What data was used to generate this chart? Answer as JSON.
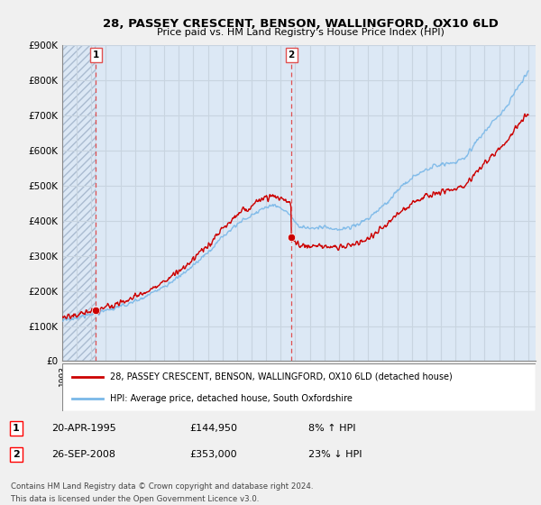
{
  "title": "28, PASSEY CRESCENT, BENSON, WALLINGFORD, OX10 6LD",
  "subtitle": "Price paid vs. HM Land Registry's House Price Index (HPI)",
  "ylim": [
    0,
    900000
  ],
  "yticks": [
    0,
    100000,
    200000,
    300000,
    400000,
    500000,
    600000,
    700000,
    800000,
    900000
  ],
  "ytick_labels": [
    "£0",
    "£100K",
    "£200K",
    "£300K",
    "£400K",
    "£500K",
    "£600K",
    "£700K",
    "£800K",
    "£900K"
  ],
  "xlim_start": 1993.0,
  "xlim_end": 2025.5,
  "background_color": "#f0f0f0",
  "plot_bg_color": "#dce8f5",
  "hatch_bg_color": "#c8d8e8",
  "grid_color": "#c8d4e0",
  "transaction1_x": 1995.305,
  "transaction1_y": 144950,
  "transaction2_x": 2008.735,
  "transaction2_y": 353000,
  "legend_line1": "28, PASSEY CRESCENT, BENSON, WALLINGFORD, OX10 6LD (detached house)",
  "legend_line2": "HPI: Average price, detached house, South Oxfordshire",
  "footer_line1": "Contains HM Land Registry data © Crown copyright and database right 2024.",
  "footer_line2": "This data is licensed under the Open Government Licence v3.0.",
  "table_row1_num": "1",
  "table_row1_date": "20-APR-1995",
  "table_row1_price": "£144,950",
  "table_row1_hpi": "8% ↑ HPI",
  "table_row2_num": "2",
  "table_row2_date": "26-SEP-2008",
  "table_row2_price": "£353,000",
  "table_row2_hpi": "23% ↓ HPI",
  "hpi_color": "#7ab8e8",
  "price_color": "#cc0000",
  "dashed_line_color": "#e05050",
  "marker_color": "#cc0000"
}
